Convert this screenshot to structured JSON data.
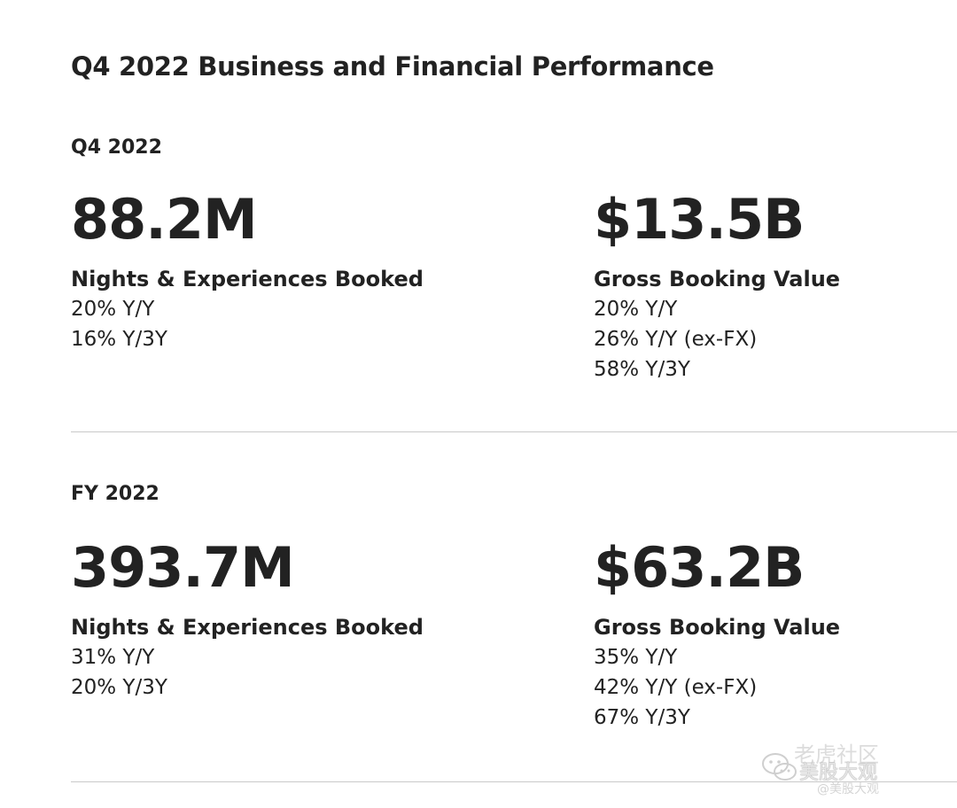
{
  "title": "Q4 2022 Business and Financial Performance",
  "sections": [
    {
      "label": "Q4 2022",
      "metrics": [
        {
          "value": "88.2M",
          "label": "Nights & Experiences Booked",
          "lines": [
            "20% Y/Y",
            "16% Y/3Y"
          ]
        },
        {
          "value": "$13.5B",
          "label": "Gross Booking Value",
          "lines": [
            "20% Y/Y",
            "26% Y/Y (ex-FX)",
            "58% Y/3Y"
          ]
        }
      ]
    },
    {
      "label": "FY 2022",
      "metrics": [
        {
          "value": "393.7M",
          "label": "Nights & Experiences Booked",
          "lines": [
            "31% Y/Y",
            "20% Y/3Y"
          ]
        },
        {
          "value": "$63.2B",
          "label": "Gross Booking Value",
          "lines": [
            "35% Y/Y",
            "42% Y/Y (ex-FX)",
            "67% Y/3Y"
          ]
        }
      ]
    }
  ],
  "watermark": {
    "line1": "老虎社区",
    "line2": "美股大观",
    "line3": "@美股大观"
  }
}
